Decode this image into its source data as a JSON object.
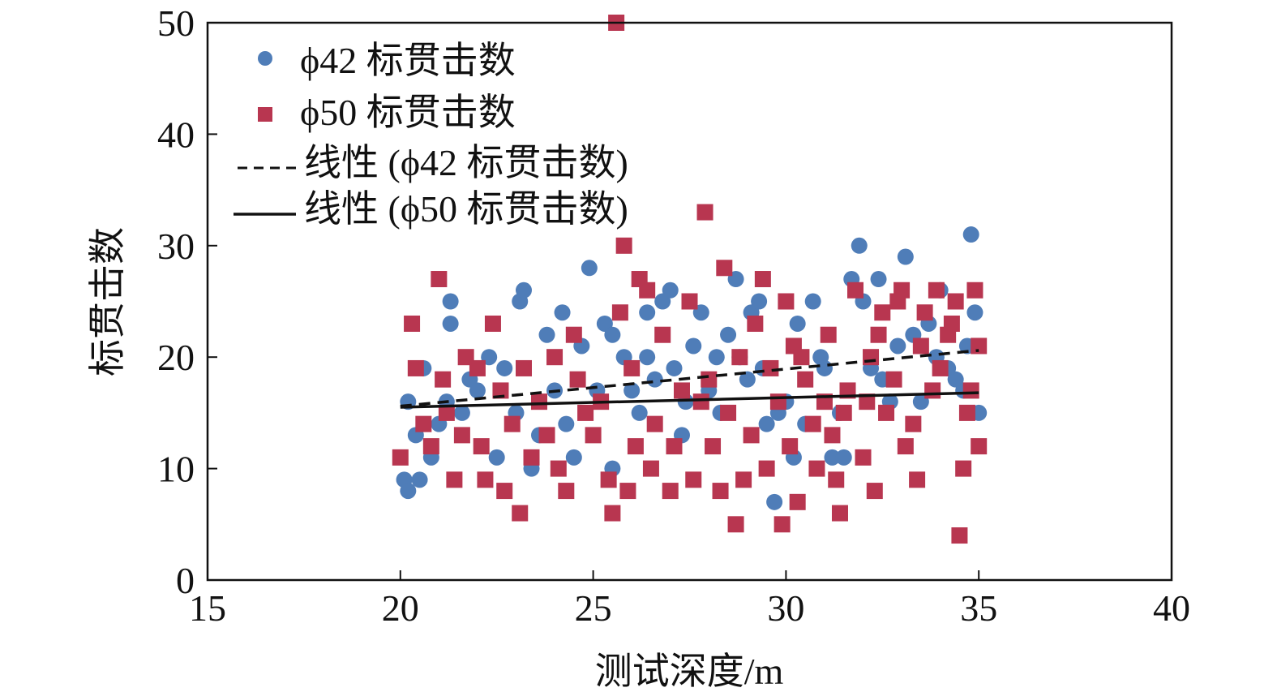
{
  "chart_data": {
    "type": "scatter",
    "xlabel": "测试深度/m",
    "ylabel": "标贯击数",
    "xlim": [
      15,
      40
    ],
    "ylim": [
      0,
      50
    ],
    "x_ticks": [
      15,
      20,
      25,
      30,
      35,
      40
    ],
    "y_ticks": [
      0,
      10,
      20,
      30,
      40,
      50
    ],
    "grid": false,
    "legend_position": "top-left",
    "legend": [
      "ϕ42 标贯击数",
      "ϕ50 标贯击数",
      "线性 (ϕ42 标贯击数)",
      "线性 (ϕ50 标贯击数)"
    ],
    "colors": {
      "phi42": "#4f7db8",
      "phi50": "#b83650",
      "trend": "#111111"
    },
    "series": [
      {
        "name": "ϕ42 标贯击数",
        "marker": "circle",
        "points": [
          [
            20.1,
            9
          ],
          [
            20.2,
            8
          ],
          [
            20.2,
            16
          ],
          [
            20.4,
            13
          ],
          [
            20.5,
            9
          ],
          [
            20.6,
            19
          ],
          [
            20.8,
            11
          ],
          [
            21.0,
            14
          ],
          [
            21.2,
            16
          ],
          [
            21.3,
            25
          ],
          [
            21.3,
            23
          ],
          [
            21.6,
            15
          ],
          [
            21.8,
            18
          ],
          [
            22.0,
            17
          ],
          [
            22.3,
            20
          ],
          [
            22.5,
            11
          ],
          [
            22.7,
            19
          ],
          [
            23.0,
            15
          ],
          [
            23.1,
            25
          ],
          [
            23.2,
            26
          ],
          [
            23.4,
            10
          ],
          [
            23.6,
            13
          ],
          [
            23.8,
            22
          ],
          [
            24.0,
            17
          ],
          [
            24.2,
            24
          ],
          [
            24.3,
            14
          ],
          [
            24.5,
            11
          ],
          [
            24.7,
            21
          ],
          [
            24.9,
            28
          ],
          [
            25.1,
            17
          ],
          [
            25.3,
            23
          ],
          [
            25.5,
            22
          ],
          [
            25.5,
            10
          ],
          [
            25.8,
            20
          ],
          [
            26.0,
            17
          ],
          [
            26.2,
            15
          ],
          [
            26.4,
            20
          ],
          [
            26.4,
            24
          ],
          [
            26.6,
            18
          ],
          [
            26.8,
            25
          ],
          [
            27.0,
            26
          ],
          [
            27.1,
            19
          ],
          [
            27.3,
            13
          ],
          [
            27.4,
            16
          ],
          [
            27.6,
            21
          ],
          [
            27.8,
            24
          ],
          [
            28.0,
            17
          ],
          [
            28.2,
            20
          ],
          [
            28.3,
            15
          ],
          [
            28.5,
            22
          ],
          [
            28.7,
            27
          ],
          [
            28.8,
            20
          ],
          [
            29.0,
            18
          ],
          [
            29.1,
            24
          ],
          [
            29.3,
            25
          ],
          [
            29.4,
            19
          ],
          [
            29.5,
            14
          ],
          [
            29.7,
            7
          ],
          [
            29.8,
            15
          ],
          [
            30.0,
            16
          ],
          [
            30.2,
            11
          ],
          [
            30.3,
            23
          ],
          [
            30.5,
            14
          ],
          [
            30.7,
            25
          ],
          [
            30.9,
            20
          ],
          [
            31.0,
            19
          ],
          [
            31.2,
            11
          ],
          [
            31.4,
            15
          ],
          [
            31.5,
            11
          ],
          [
            31.7,
            27
          ],
          [
            31.9,
            30
          ],
          [
            32.0,
            25
          ],
          [
            32.2,
            19
          ],
          [
            32.4,
            27
          ],
          [
            32.5,
            18
          ],
          [
            32.7,
            16
          ],
          [
            32.9,
            21
          ],
          [
            33.1,
            29
          ],
          [
            33.3,
            22
          ],
          [
            33.5,
            16
          ],
          [
            33.7,
            23
          ],
          [
            33.9,
            20
          ],
          [
            34.0,
            26
          ],
          [
            34.2,
            19
          ],
          [
            34.4,
            18
          ],
          [
            34.6,
            17
          ],
          [
            34.8,
            31
          ],
          [
            34.9,
            24
          ],
          [
            35.0,
            15
          ],
          [
            34.7,
            21
          ]
        ]
      },
      {
        "name": "ϕ50 标贯击数",
        "marker": "square",
        "points": [
          [
            20.0,
            11
          ],
          [
            20.3,
            23
          ],
          [
            20.4,
            19
          ],
          [
            20.6,
            14
          ],
          [
            20.8,
            12
          ],
          [
            21.0,
            27
          ],
          [
            21.1,
            18
          ],
          [
            21.2,
            15
          ],
          [
            21.4,
            9
          ],
          [
            21.6,
            13
          ],
          [
            21.7,
            20
          ],
          [
            22.0,
            19
          ],
          [
            22.1,
            12
          ],
          [
            22.2,
            9
          ],
          [
            22.4,
            23
          ],
          [
            22.6,
            17
          ],
          [
            22.7,
            8
          ],
          [
            22.9,
            14
          ],
          [
            23.1,
            6
          ],
          [
            23.2,
            19
          ],
          [
            23.4,
            11
          ],
          [
            23.6,
            16
          ],
          [
            23.8,
            13
          ],
          [
            24.0,
            20
          ],
          [
            24.1,
            10
          ],
          [
            24.3,
            8
          ],
          [
            24.5,
            22
          ],
          [
            24.6,
            18
          ],
          [
            24.8,
            15
          ],
          [
            25.0,
            13
          ],
          [
            25.2,
            16
          ],
          [
            25.4,
            9
          ],
          [
            25.5,
            6
          ],
          [
            25.6,
            50
          ],
          [
            25.7,
            24
          ],
          [
            25.8,
            30
          ],
          [
            25.9,
            8
          ],
          [
            26.0,
            19
          ],
          [
            26.1,
            12
          ],
          [
            26.2,
            27
          ],
          [
            26.4,
            26
          ],
          [
            26.5,
            10
          ],
          [
            26.6,
            14
          ],
          [
            26.8,
            22
          ],
          [
            27.0,
            8
          ],
          [
            27.1,
            12
          ],
          [
            27.3,
            17
          ],
          [
            27.5,
            25
          ],
          [
            27.6,
            9
          ],
          [
            27.8,
            16
          ],
          [
            27.9,
            33
          ],
          [
            28.0,
            18
          ],
          [
            28.1,
            12
          ],
          [
            28.3,
            8
          ],
          [
            28.4,
            28
          ],
          [
            28.5,
            15
          ],
          [
            28.7,
            5
          ],
          [
            28.8,
            20
          ],
          [
            28.9,
            9
          ],
          [
            29.1,
            13
          ],
          [
            29.2,
            23
          ],
          [
            29.4,
            27
          ],
          [
            29.5,
            10
          ],
          [
            29.6,
            19
          ],
          [
            29.8,
            16
          ],
          [
            29.9,
            5
          ],
          [
            30.0,
            25
          ],
          [
            30.1,
            12
          ],
          [
            30.2,
            21
          ],
          [
            30.3,
            7
          ],
          [
            30.5,
            18
          ],
          [
            30.7,
            14
          ],
          [
            30.8,
            10
          ],
          [
            31.0,
            16
          ],
          [
            31.1,
            22
          ],
          [
            31.3,
            9
          ],
          [
            31.4,
            6
          ],
          [
            31.5,
            15
          ],
          [
            31.6,
            17
          ],
          [
            31.8,
            26
          ],
          [
            32.0,
            11
          ],
          [
            32.2,
            20
          ],
          [
            32.3,
            8
          ],
          [
            32.4,
            22
          ],
          [
            32.5,
            24
          ],
          [
            32.6,
            15
          ],
          [
            32.8,
            18
          ],
          [
            33.0,
            26
          ],
          [
            33.1,
            12
          ],
          [
            33.3,
            14
          ],
          [
            33.4,
            9
          ],
          [
            33.5,
            21
          ],
          [
            33.6,
            24
          ],
          [
            33.8,
            17
          ],
          [
            34.0,
            19
          ],
          [
            34.2,
            22
          ],
          [
            34.4,
            25
          ],
          [
            34.5,
            4
          ],
          [
            34.6,
            10
          ],
          [
            34.7,
            15
          ],
          [
            34.8,
            17
          ],
          [
            34.9,
            26
          ],
          [
            35.0,
            21
          ],
          [
            35.0,
            12
          ],
          [
            34.3,
            23
          ],
          [
            33.9,
            26
          ],
          [
            32.9,
            25
          ],
          [
            32.1,
            16
          ],
          [
            31.2,
            13
          ],
          [
            30.4,
            20
          ]
        ]
      }
    ],
    "trendlines": [
      {
        "name": "线性 (ϕ42 标贯击数)",
        "style": "dashed",
        "x": [
          20,
          35
        ],
        "y": [
          15.6,
          20.6
        ]
      },
      {
        "name": "线性 (ϕ50 标贯击数)",
        "style": "solid",
        "x": [
          20,
          35
        ],
        "y": [
          15.5,
          16.8
        ]
      }
    ]
  }
}
